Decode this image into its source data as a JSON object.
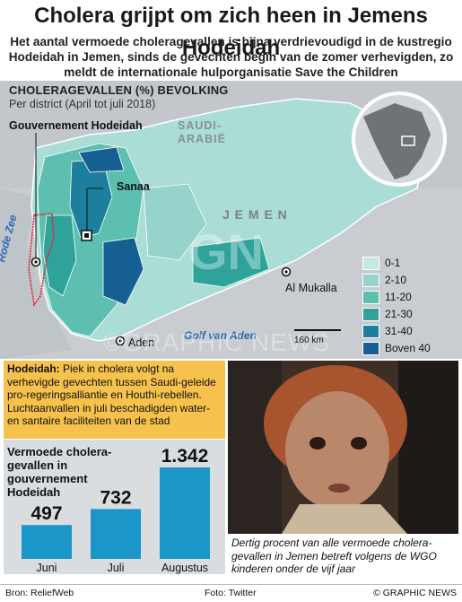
{
  "title": "Cholera grijpt om zich heen in Jemens Hodeidah",
  "subtitle": "Het aantal vermoede choleragevallen is bijna verdrievoudigd in de kustregio Hodeidah in Jemen, sinds de gevechten begin van de zomer verhevigden, zo meldt de internationale hulporganisatie Save the Children",
  "map": {
    "legend_title": "CHOLERAGEVALLEN (%) BEVOLKING",
    "legend_sub": "Per district (April tot juli 2018)",
    "governorate_label": "Gouvernement Hodeidah",
    "country_saudi_1": "SAUDI-",
    "country_saudi_2": "ARABIË",
    "country_yemen": "J E M E N",
    "cities": {
      "sanaa": "Sanaa",
      "mukalla": "Al Mukalla",
      "aden": "Aden"
    },
    "seas": {
      "red_sea": "Rode Zee",
      "gulf": "Golf van Aden"
    },
    "scale_label": "160 km",
    "legend": [
      {
        "label": "0-1",
        "color": "#c6e8e3"
      },
      {
        "label": "2-10",
        "color": "#96d3ca"
      },
      {
        "label": "11-20",
        "color": "#5cbfb0"
      },
      {
        "label": "21-30",
        "color": "#2fa39a"
      },
      {
        "label": "31-40",
        "color": "#1b7f9d"
      },
      {
        "label": "Boven 40",
        "color": "#155f92"
      }
    ],
    "watermark_logo": "GN",
    "watermark_text": "©GRAPHIC NEWS"
  },
  "info": {
    "heading": "Hodeidah:",
    "body": "Piek in cholera volgt na verhevigde gevechten tussen Saudi-geleide pro-regeringsalliantie en Houthi-rebellen. Luchtaanvallen in juli beschadigden water- en santaire faciliteiten van de stad"
  },
  "chart_data": {
    "type": "bar",
    "title": "Vermoede cholera-gevallen in gouvernement Hodeidah",
    "categories": [
      "Juni",
      "Juli",
      "Augustus"
    ],
    "values": [
      497,
      732,
      1342
    ],
    "value_labels": [
      "497",
      "732",
      "1.342"
    ],
    "ylim": [
      0,
      1342
    ]
  },
  "caption": "Dertig procent van alle vermoede cholera-gevallen in Jemen betreft volgens de WGO kinderen onder de vijf jaar",
  "footer": {
    "source": "Bron: ReliefWeb",
    "photo": "Foto: Twitter",
    "copyright": "© GRAPHIC NEWS"
  },
  "colors": {
    "info_bg": "#f6c14c",
    "bar": "#1b96c8",
    "chart_bg": "#d9dde0",
    "map_bg": "#c9cdd1"
  }
}
